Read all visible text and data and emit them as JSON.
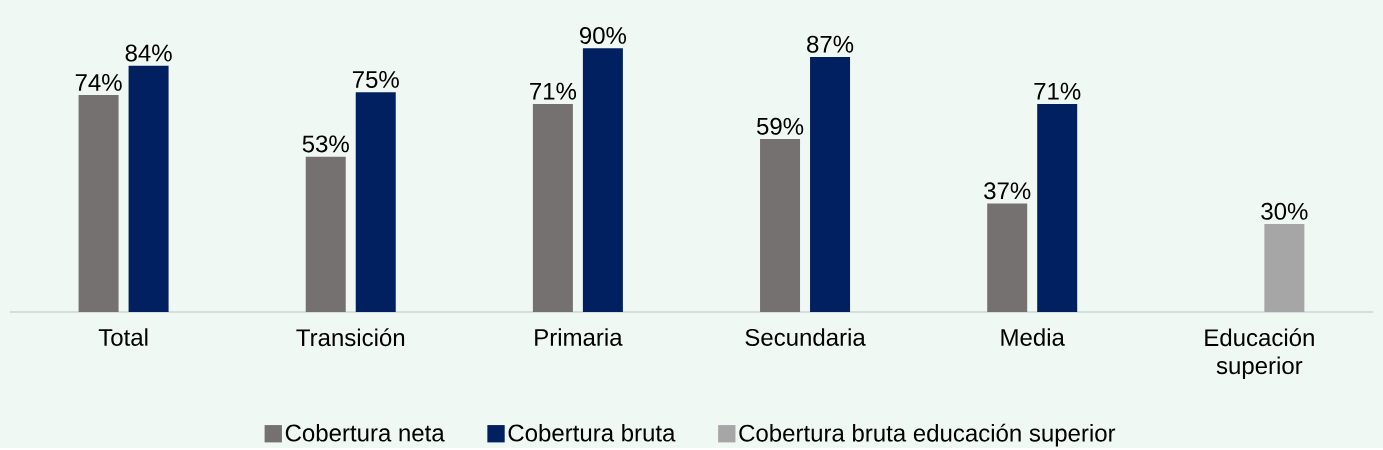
{
  "chart_data": {
    "type": "bar",
    "categories": [
      "Total",
      "Transición",
      "Primaria",
      "Secundaria",
      "Media",
      "Educación superior"
    ],
    "series": [
      {
        "name": "Cobertura neta",
        "color": "#767171",
        "values": [
          74,
          53,
          71,
          59,
          37,
          null
        ],
        "value_labels": [
          "74%",
          "53%",
          "71%",
          "59%",
          "37%",
          null
        ]
      },
      {
        "name": "Cobertura bruta",
        "color": "#002060",
        "values": [
          84,
          75,
          90,
          87,
          71,
          null
        ],
        "value_labels": [
          "84%",
          "75%",
          "90%",
          "87%",
          "71%",
          null
        ]
      },
      {
        "name": "Cobertura bruta educación superior",
        "color": "#a6a6a6",
        "values": [
          null,
          null,
          null,
          null,
          null,
          30
        ],
        "value_labels": [
          null,
          null,
          null,
          null,
          null,
          "30%"
        ]
      }
    ],
    "legend": "bottom",
    "grid": false
  }
}
